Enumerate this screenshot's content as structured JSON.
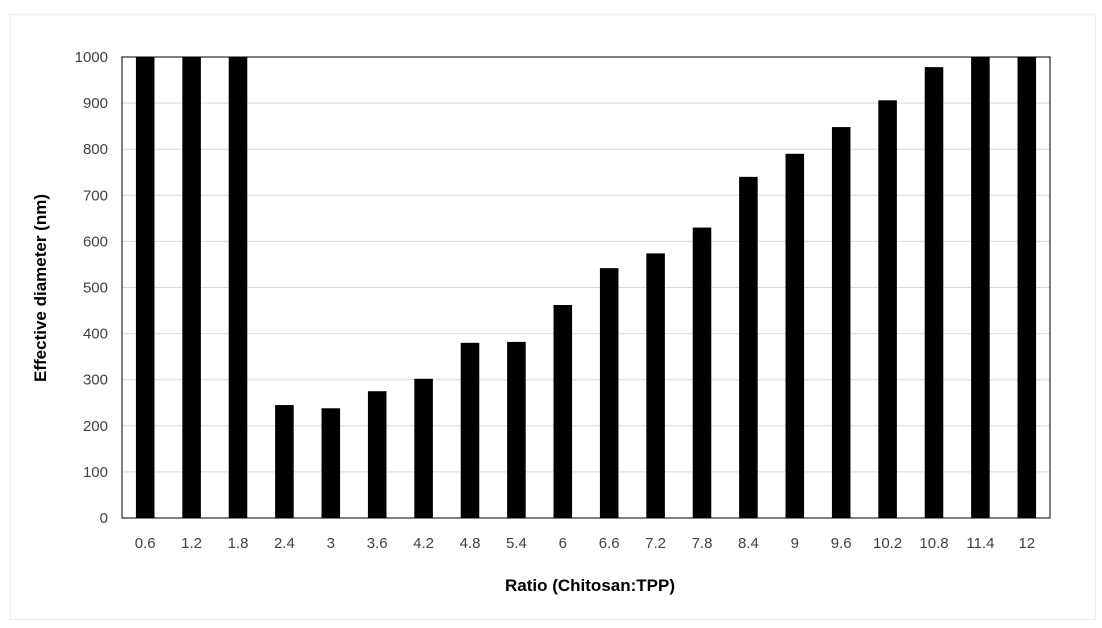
{
  "chart_data": {
    "type": "bar",
    "title": "",
    "xlabel": "Ratio (Chitosan:TPP)",
    "ylabel": "Effective diameter (nm)",
    "categories": [
      "0.6",
      "1.2",
      "1.8",
      "2.4",
      "3",
      "3.6",
      "4.2",
      "4.8",
      "5.4",
      "6",
      "6.6",
      "7.2",
      "7.8",
      "8.4",
      "9",
      "9.6",
      "10.2",
      "10.8",
      "11.4",
      "12"
    ],
    "values": [
      1000,
      1000,
      1000,
      245,
      238,
      275,
      302,
      380,
      382,
      462,
      542,
      574,
      630,
      740,
      790,
      848,
      906,
      978,
      1000,
      1000
    ],
    "ylim": [
      0,
      1000
    ],
    "yticks": [
      0,
      100,
      200,
      300,
      400,
      500,
      600,
      700,
      800,
      900,
      1000
    ],
    "grid": true,
    "legend": "none",
    "colors": {
      "bar": "#000000",
      "grid": "#d9d9d9",
      "axis": "#000000"
    }
  }
}
